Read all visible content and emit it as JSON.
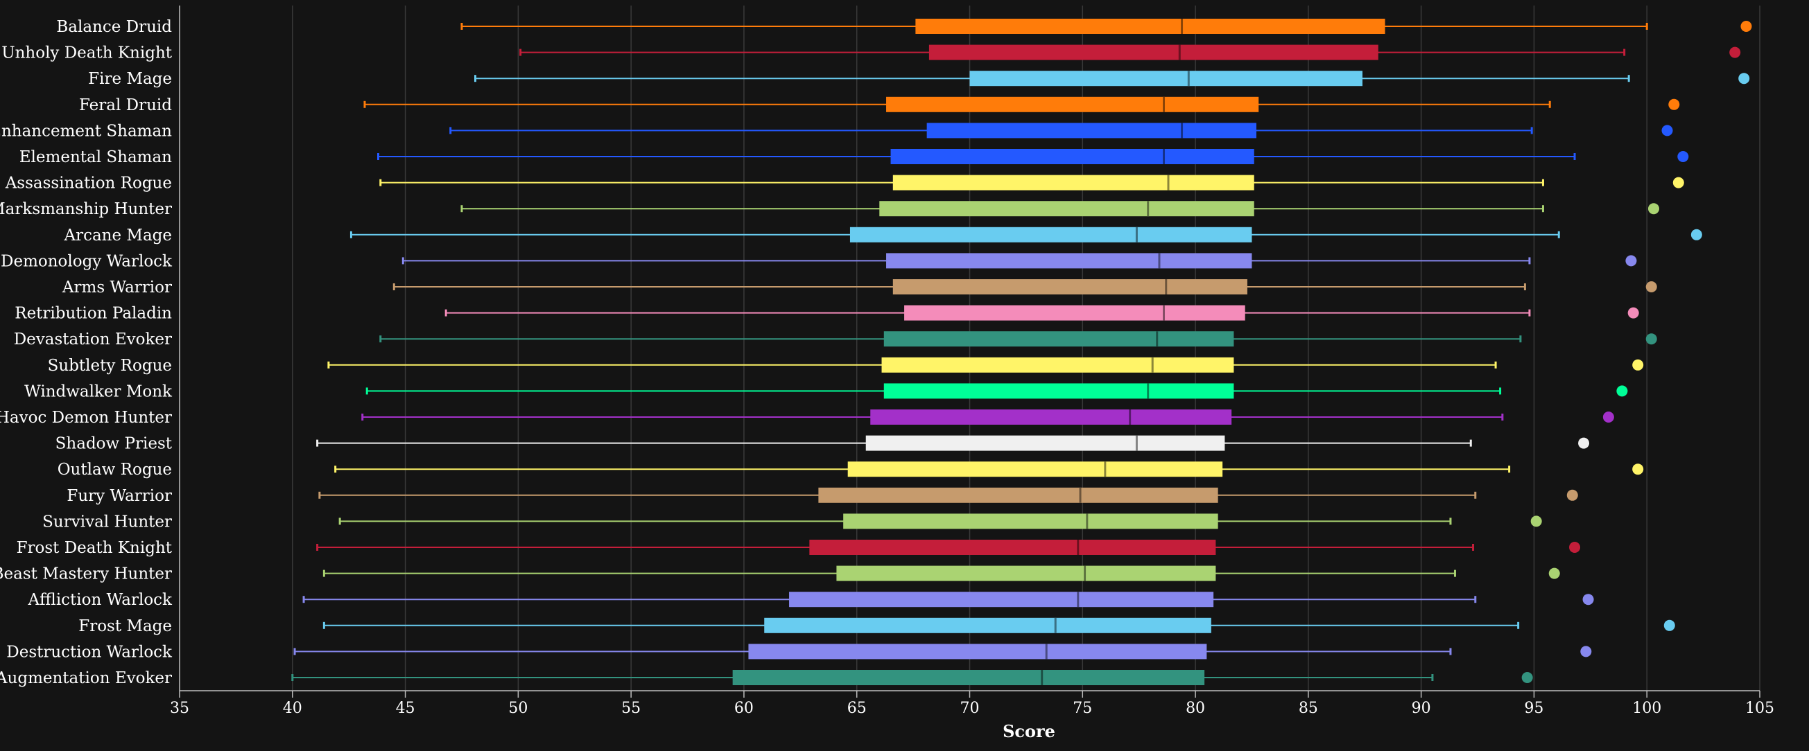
{
  "chart_data": {
    "type": "boxplot",
    "orientation": "horizontal",
    "xlabel": "Score",
    "xlim": [
      35,
      105
    ],
    "xticks": [
      35,
      40,
      45,
      50,
      55,
      60,
      65,
      70,
      75,
      80,
      85,
      90,
      95,
      100,
      105
    ],
    "grid": "vertical",
    "background": "#141414",
    "categories": [
      {
        "name": "Balance Druid",
        "min": 47.5,
        "q1": 67.6,
        "median": 79.4,
        "q3": 88.4,
        "max": 100.0,
        "outlier": 104.4,
        "color": "#ff7c0a"
      },
      {
        "name": "Unholy Death Knight",
        "min": 50.1,
        "q1": 68.2,
        "median": 79.3,
        "q3": 88.1,
        "max": 99.0,
        "outlier": 103.9,
        "color": "#c41e3a"
      },
      {
        "name": "Fire Mage",
        "min": 48.1,
        "q1": 70.0,
        "median": 79.7,
        "q3": 87.4,
        "max": 99.2,
        "outlier": 104.3,
        "color": "#69ccf0"
      },
      {
        "name": "Feral Druid",
        "min": 43.2,
        "q1": 66.3,
        "median": 78.6,
        "q3": 82.8,
        "max": 95.7,
        "outlier": 101.2,
        "color": "#ff7c0a"
      },
      {
        "name": "Enhancement Shaman",
        "min": 47.0,
        "q1": 68.1,
        "median": 79.4,
        "q3": 82.7,
        "max": 94.9,
        "outlier": 100.9,
        "color": "#2459ff"
      },
      {
        "name": "Elemental Shaman",
        "min": 43.8,
        "q1": 66.5,
        "median": 78.6,
        "q3": 82.6,
        "max": 96.8,
        "outlier": 101.6,
        "color": "#2459ff"
      },
      {
        "name": "Assassination Rogue",
        "min": 43.9,
        "q1": 66.6,
        "median": 78.8,
        "q3": 82.6,
        "max": 95.4,
        "outlier": 101.4,
        "color": "#fff468"
      },
      {
        "name": "Marksmanship Hunter",
        "min": 47.5,
        "q1": 66.0,
        "median": 77.9,
        "q3": 82.6,
        "max": 95.4,
        "outlier": 100.3,
        "color": "#aad372"
      },
      {
        "name": "Arcane Mage",
        "min": 42.6,
        "q1": 64.7,
        "median": 77.4,
        "q3": 82.5,
        "max": 96.1,
        "outlier": 102.2,
        "color": "#69ccf0"
      },
      {
        "name": "Demonology Warlock",
        "min": 44.9,
        "q1": 66.3,
        "median": 78.4,
        "q3": 82.5,
        "max": 94.8,
        "outlier": 99.3,
        "color": "#8788ee"
      },
      {
        "name": "Arms Warrior",
        "min": 44.5,
        "q1": 66.6,
        "median": 78.7,
        "q3": 82.3,
        "max": 94.6,
        "outlier": 100.2,
        "color": "#c69b6d"
      },
      {
        "name": "Retribution Paladin",
        "min": 46.8,
        "q1": 67.1,
        "median": 78.6,
        "q3": 82.2,
        "max": 94.8,
        "outlier": 99.4,
        "color": "#f48cba"
      },
      {
        "name": "Devastation Evoker",
        "min": 43.9,
        "q1": 66.2,
        "median": 78.3,
        "q3": 81.7,
        "max": 94.4,
        "outlier": 100.2,
        "color": "#33937f"
      },
      {
        "name": "Subtlety Rogue",
        "min": 41.6,
        "q1": 66.1,
        "median": 78.1,
        "q3": 81.7,
        "max": 93.3,
        "outlier": 99.6,
        "color": "#fff468"
      },
      {
        "name": "Windwalker Monk",
        "min": 43.3,
        "q1": 66.2,
        "median": 77.9,
        "q3": 81.7,
        "max": 93.5,
        "outlier": 98.9,
        "color": "#00ff98"
      },
      {
        "name": "Havoc Demon Hunter",
        "min": 43.1,
        "q1": 65.6,
        "median": 77.1,
        "q3": 81.6,
        "max": 93.6,
        "outlier": 98.3,
        "color": "#a330c9"
      },
      {
        "name": "Shadow Priest",
        "min": 41.1,
        "q1": 65.4,
        "median": 77.4,
        "q3": 81.3,
        "max": 92.2,
        "outlier": 97.2,
        "color": "#f0f0f0"
      },
      {
        "name": "Outlaw Rogue",
        "min": 41.9,
        "q1": 64.6,
        "median": 76.0,
        "q3": 81.2,
        "max": 93.9,
        "outlier": 99.6,
        "color": "#fff468"
      },
      {
        "name": "Fury Warrior",
        "min": 41.2,
        "q1": 63.3,
        "median": 74.9,
        "q3": 81.0,
        "max": 92.4,
        "outlier": 96.7,
        "color": "#c69b6d"
      },
      {
        "name": "Survival Hunter",
        "min": 42.1,
        "q1": 64.4,
        "median": 75.2,
        "q3": 81.0,
        "max": 91.3,
        "outlier": 95.1,
        "color": "#aad372"
      },
      {
        "name": "Frost Death Knight",
        "min": 41.1,
        "q1": 62.9,
        "median": 74.8,
        "q3": 80.9,
        "max": 92.3,
        "outlier": 96.8,
        "color": "#c41e3a"
      },
      {
        "name": "Beast Mastery Hunter",
        "min": 41.4,
        "q1": 64.1,
        "median": 75.1,
        "q3": 80.9,
        "max": 91.5,
        "outlier": 95.9,
        "color": "#aad372"
      },
      {
        "name": "Affliction Warlock",
        "min": 40.5,
        "q1": 62.0,
        "median": 74.8,
        "q3": 80.8,
        "max": 92.4,
        "outlier": 97.4,
        "color": "#8788ee"
      },
      {
        "name": "Frost Mage",
        "min": 41.4,
        "q1": 60.9,
        "median": 73.8,
        "q3": 80.7,
        "max": 94.3,
        "outlier": 101.0,
        "color": "#69ccf0"
      },
      {
        "name": "Destruction Warlock",
        "min": 40.1,
        "q1": 60.2,
        "median": 73.4,
        "q3": 80.5,
        "max": 91.3,
        "outlier": 97.3,
        "color": "#8788ee"
      },
      {
        "name": "Augmentation Evoker",
        "min": 40.0,
        "q1": 59.5,
        "median": 73.2,
        "q3": 80.4,
        "max": 90.5,
        "outlier": 94.7,
        "color": "#33937f"
      }
    ]
  }
}
